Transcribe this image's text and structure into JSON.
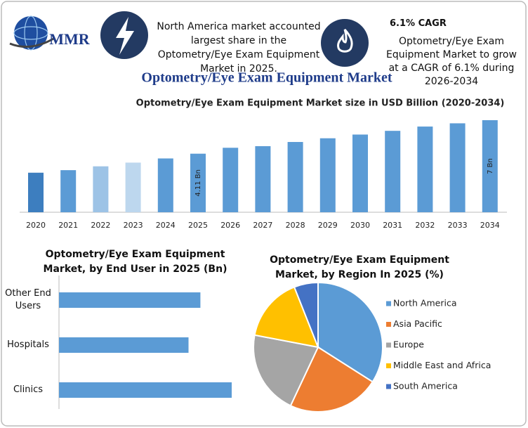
{
  "header": {
    "logo": "MMR",
    "note": "North America market accounted largest share in the Optometry/Eye Exam Equipment Market in 2025.",
    "cagr_title": "6.1% CAGR",
    "cagr_text": "Optometry/Eye Exam Equipment Market to grow at a CAGR of 6.1% during 2026-2034",
    "title": "Optometry/Eye Exam Equipment Market"
  },
  "chart_data": [
    {
      "type": "bar",
      "title": "Optometry/Eye Exam Equipment Market size in USD Billion (2020-2034)",
      "categories": [
        "2020",
        "2021",
        "2022",
        "2023",
        "2024",
        "2025",
        "2026",
        "2027",
        "2028",
        "2029",
        "2030",
        "2031",
        "2032",
        "2033",
        "2034"
      ],
      "values": [
        2.47,
        2.69,
        3.02,
        3.34,
        3.7,
        4.11,
        4.62,
        4.76,
        5.12,
        5.44,
        5.76,
        6.08,
        6.45,
        6.73,
        7
      ],
      "value_labels": [
        null,
        null,
        null,
        null,
        null,
        "4.11 Bn",
        null,
        null,
        null,
        null,
        null,
        null,
        null,
        null,
        "7 Bn"
      ],
      "colors": [
        "#3d7ebf",
        "#5b9bd5",
        "#9dc3e6",
        "#bdd7ee",
        "#5b9bd5",
        "#5b9bd5",
        "#5b9bd5",
        "#5b9bd5",
        "#5b9bd5",
        "#5b9bd5",
        "#5b9bd5",
        "#5b9bd5",
        "#5b9bd5",
        "#5b9bd5",
        "#5b9bd5"
      ],
      "ylim": [
        1,
        7
      ]
    },
    {
      "type": "barh",
      "title": "Optometry/Eye Exam Equipment Market, by End User in 2025 (Bn)",
      "categories": [
        "Other End Users",
        "Hospitals",
        "Clinics"
      ],
      "values": [
        1.31,
        1.2,
        1.6
      ],
      "color": "#5b9bd5",
      "xlim": [
        0,
        1.6
      ]
    },
    {
      "type": "pie",
      "title": "Optometry/Eye Exam Equipment Market, by Region In 2025 (%)",
      "categories": [
        "North America",
        "Asia Pacific",
        "Europe",
        "Middle East and Africa",
        "South America"
      ],
      "values": [
        34,
        23,
        21,
        16,
        6
      ],
      "colors": [
        "#5b9bd5",
        "#ed7d31",
        "#a5a5a5",
        "#ffc000",
        "#4472c4"
      ],
      "legend": "right"
    }
  ]
}
